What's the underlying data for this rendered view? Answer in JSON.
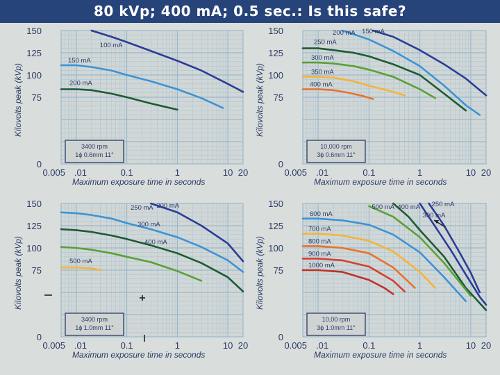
{
  "slide": {
    "title": "80 kVp; 400 mA; 0.5 sec.: Is this safe?"
  },
  "chart_data": [
    {
      "type": "line",
      "xscale": "log",
      "xlim": [
        0.005,
        20
      ],
      "ylim": [
        0,
        150
      ],
      "x_tick_labels": [
        "0.005",
        ".01",
        "0.1",
        "1",
        "10",
        "20"
      ],
      "y_tick_labels": [
        "0",
        "75",
        "100",
        "125",
        "150"
      ],
      "xlabel": "Maximum exposure time in seconds",
      "ylabel": "Kilovolts peak (kVp)",
      "info_box": [
        "3400 rpm",
        "1ϕ 0.6mm 11°"
      ],
      "series": [
        {
          "name": "100 mA",
          "color": "#2b3c96",
          "x": [
            0.02,
            0.05,
            0.1,
            0.3,
            1,
            3,
            10,
            20
          ],
          "y": [
            150,
            143,
            137,
            127,
            116,
            105,
            90,
            81
          ]
        },
        {
          "name": "150 mA",
          "color": "#3d93d4",
          "x": [
            0.005,
            0.01,
            0.02,
            0.05,
            0.1,
            0.3,
            1,
            3,
            8
          ],
          "y": [
            111,
            111,
            109,
            105,
            100,
            93,
            84,
            74,
            63
          ]
        },
        {
          "name": "200 mA",
          "color": "#1e5a33",
          "x": [
            0.005,
            0.01,
            0.02,
            0.05,
            0.1,
            0.3,
            0.5,
            1
          ],
          "y": [
            84,
            84,
            83,
            79,
            75,
            68,
            65,
            61
          ]
        }
      ]
    },
    {
      "type": "line",
      "xscale": "log",
      "xlim": [
        0.005,
        20
      ],
      "ylim": [
        0,
        150
      ],
      "x_tick_labels": [
        "0.005",
        ".01",
        "0.1",
        "1",
        "10",
        "20"
      ],
      "y_tick_labels": [
        "0",
        "75",
        "100",
        "125",
        "150"
      ],
      "xlabel": "Maximum exposure time in seconds",
      "ylabel": "Kilovolts peak (kVp)",
      "info_box": [
        "10,000 rpm",
        "3ϕ 0.6mm 11°"
      ],
      "series": [
        {
          "name": "150 mA",
          "color": "#2b3c96",
          "x": [
            0.12,
            0.3,
            1,
            3,
            8,
            15,
            20
          ],
          "y": [
            150,
            143,
            128,
            112,
            96,
            83,
            77
          ]
        },
        {
          "name": "200 mA",
          "color": "#3d93d4",
          "x": [
            0.03,
            0.1,
            0.3,
            1,
            3,
            8,
            15
          ],
          "y": [
            150,
            140,
            127,
            110,
            88,
            66,
            55
          ]
        },
        {
          "name": "250 mA",
          "color": "#1e5a33",
          "x": [
            0.005,
            0.01,
            0.02,
            0.05,
            0.1,
            0.3,
            1,
            3,
            8
          ],
          "y": [
            130,
            130,
            128,
            125,
            121,
            112,
            100,
            79,
            60
          ]
        },
        {
          "name": "300 mA",
          "color": "#5aa035",
          "x": [
            0.005,
            0.01,
            0.02,
            0.05,
            0.1,
            0.3,
            1,
            2
          ],
          "y": [
            114,
            114,
            113,
            110,
            106,
            98,
            84,
            74
          ]
        },
        {
          "name": "350 mA",
          "color": "#f2b53a",
          "x": [
            0.005,
            0.01,
            0.02,
            0.05,
            0.1,
            0.3,
            0.5
          ],
          "y": [
            98,
            98,
            97,
            93,
            88,
            81,
            77
          ]
        },
        {
          "name": "400 mA",
          "color": "#e8722e",
          "x": [
            0.005,
            0.01,
            0.02,
            0.04,
            0.08,
            0.12
          ],
          "y": [
            84,
            84,
            83,
            80,
            76,
            73
          ]
        }
      ]
    },
    {
      "type": "line",
      "xscale": "log",
      "xlim": [
        0.005,
        20
      ],
      "ylim": [
        0,
        150
      ],
      "x_tick_labels": [
        "0.005",
        ".01",
        "0.1",
        "1",
        "10",
        "20"
      ],
      "y_tick_labels": [
        "0",
        "75",
        "100",
        "125",
        "150"
      ],
      "xlabel": "Maximum exposure time in seconds",
      "ylabel": "Kilovolts peak (kVp)",
      "info_box": [
        "3400 rpm",
        "1ϕ 1.0mm 11°"
      ],
      "series": [
        {
          "name": "200 mA",
          "color": "#2b3c96",
          "x": [
            0.3,
            1,
            3,
            10,
            20
          ],
          "y": [
            150,
            140,
            125,
            105,
            85
          ]
        },
        {
          "name": "250 mA",
          "color": "#3d93d4",
          "x": [
            0.005,
            0.01,
            0.02,
            0.05,
            0.1,
            0.3,
            1,
            3,
            10,
            20
          ],
          "y": [
            140,
            139,
            137,
            133,
            128,
            121,
            112,
            101,
            86,
            73
          ]
        },
        {
          "name": "300 mA",
          "color": "#1e5a33",
          "x": [
            0.005,
            0.01,
            0.02,
            0.05,
            0.1,
            0.3,
            1,
            3,
            10,
            20
          ],
          "y": [
            121,
            120,
            118,
            114,
            110,
            103,
            94,
            83,
            67,
            51
          ]
        },
        {
          "name": "400 mA",
          "color": "#5aa035",
          "x": [
            0.005,
            0.01,
            0.02,
            0.05,
            0.1,
            0.3,
            1,
            3
          ],
          "y": [
            101,
            100,
            98,
            94,
            90,
            84,
            74,
            63
          ]
        },
        {
          "name": "500 mA",
          "color": "#f2b53a",
          "x": [
            0.005,
            0.01,
            0.02,
            0.03
          ],
          "y": [
            78,
            78,
            77,
            75
          ]
        }
      ]
    },
    {
      "type": "line",
      "xscale": "log",
      "xlim": [
        0.005,
        20
      ],
      "ylim": [
        0,
        150
      ],
      "x_tick_labels": [
        "0.005",
        ".01",
        "0.1",
        "1",
        "10",
        "20"
      ],
      "y_tick_labels": [
        "0",
        "75",
        "100",
        "125",
        "150"
      ],
      "xlabel": "Maximum exposure time in seconds",
      "ylabel": "Kilovolts peak (kVp)",
      "info_box": [
        "10,00 rpm",
        "3ϕ 1.0mm 11°"
      ],
      "series": [
        {
          "name": "250 mA",
          "color": "#2b3c96",
          "x": [
            1.5,
            3,
            6,
            10,
            15
          ],
          "y": [
            150,
            125,
            95,
            72,
            50
          ]
        },
        {
          "name": "300 mA",
          "color": "#2b3c96",
          "x": [
            1,
            2,
            4,
            8,
            15,
            20
          ],
          "y": [
            150,
            124,
            98,
            70,
            45,
            36
          ]
        },
        {
          "name": "400 mA",
          "color": "#1e5a33",
          "x": [
            0.3,
            0.6,
            1,
            3,
            8,
            20
          ],
          "y": [
            150,
            135,
            120,
            90,
            55,
            30
          ]
        },
        {
          "name": "500 mA",
          "color": "#5aa035",
          "x": [
            0.1,
            0.3,
            1,
            3,
            10
          ],
          "y": [
            147,
            135,
            112,
            83,
            46
          ]
        },
        {
          "name": "600 mA",
          "color": "#3d93d4",
          "x": [
            0.005,
            0.01,
            0.03,
            0.1,
            0.3,
            1,
            3,
            8
          ],
          "y": [
            133,
            133,
            131,
            126,
            115,
            95,
            67,
            40
          ]
        },
        {
          "name": "700 mA",
          "color": "#f2b53a",
          "x": [
            0.005,
            0.01,
            0.03,
            0.1,
            0.3,
            1,
            2
          ],
          "y": [
            116,
            116,
            114,
            108,
            96,
            73,
            55
          ]
        },
        {
          "name": "800 mA",
          "color": "#e8722e",
          "x": [
            0.005,
            0.01,
            0.03,
            0.1,
            0.3,
            0.8
          ],
          "y": [
            102,
            102,
            100,
            94,
            78,
            55
          ]
        },
        {
          "name": "900 mA",
          "color": "#d63f2e",
          "x": [
            0.005,
            0.01,
            0.03,
            0.1,
            0.3,
            0.5
          ],
          "y": [
            88,
            88,
            86,
            79,
            63,
            51
          ]
        },
        {
          "name": "1000 mA",
          "color": "#c0302b",
          "x": [
            0.005,
            0.01,
            0.03,
            0.1,
            0.2,
            0.3
          ],
          "y": [
            75,
            75,
            73,
            64,
            55,
            48
          ]
        }
      ]
    }
  ]
}
